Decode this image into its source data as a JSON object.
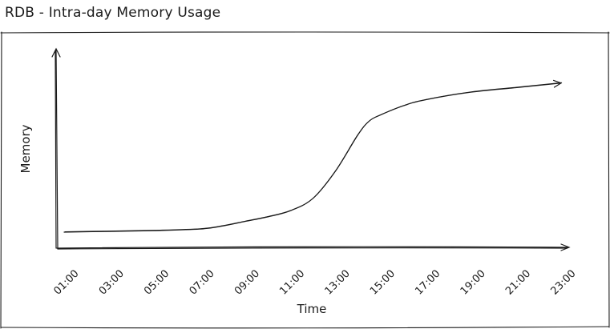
{
  "title": "RDB - Intra-day Memory Usage",
  "chart_data": {
    "type": "line",
    "xlabel": "Time",
    "ylabel": "Memory",
    "x_ticks": [
      "01:00",
      "03:00",
      "05:00",
      "07:00",
      "09:00",
      "11:00",
      "13:00",
      "15:00",
      "17:00",
      "19:00",
      "21:00",
      "23:00"
    ],
    "y_ticks": [],
    "grid": false,
    "legend": "none",
    "series": [
      {
        "x": [
          "01:00",
          "03:00",
          "05:00",
          "07:00",
          "08:00",
          "09:00",
          "10:00",
          "11:00",
          "12:00",
          "13:00",
          "14:00",
          "14:30",
          "15:00",
          "16:00",
          "17:00",
          "19:00",
          "21:00",
          "23:00"
        ],
        "values": [
          0.0,
          0.005,
          0.01,
          0.02,
          0.04,
          0.07,
          0.1,
          0.14,
          0.22,
          0.4,
          0.64,
          0.73,
          0.77,
          0.83,
          0.87,
          0.92,
          0.95,
          0.98
        ]
      }
    ]
  }
}
